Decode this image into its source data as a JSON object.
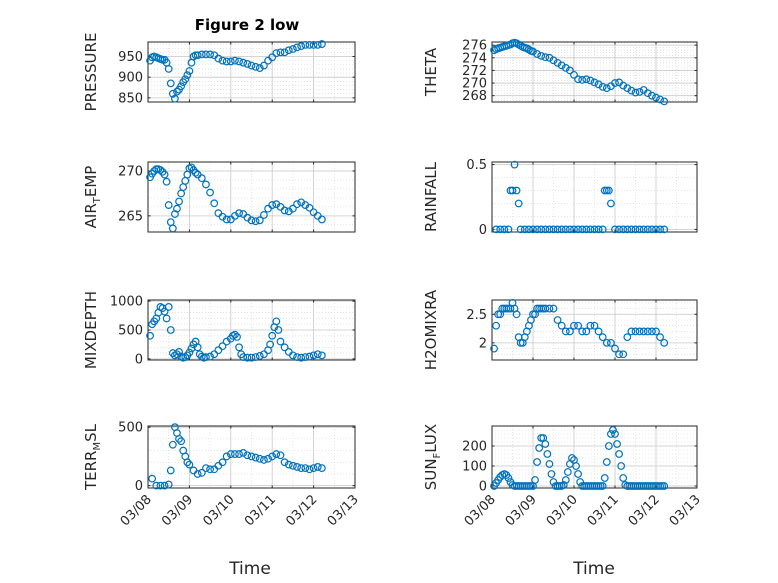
{
  "figure": {
    "title": "Figure 2 low"
  },
  "colors": {
    "marker": "#0072BD",
    "axis": "#262626",
    "grid": "#D4D4D4"
  },
  "chart_data": [
    {
      "type": "scatter",
      "ylabel": "PRESSURE",
      "xlim": [
        "03/08",
        "03/13"
      ],
      "ylim": [
        840,
        985
      ],
      "yticks": [
        850,
        900,
        950
      ],
      "x": [
        0.05,
        0.1,
        0.15,
        0.2,
        0.25,
        0.3,
        0.35,
        0.4,
        0.45,
        0.5,
        0.55,
        0.6,
        0.65,
        0.7,
        0.75,
        0.8,
        0.85,
        0.9,
        0.95,
        1.0,
        1.05,
        1.1,
        1.15,
        1.2,
        1.3,
        1.4,
        1.5,
        1.6,
        1.7,
        1.8,
        1.9,
        2.0,
        2.1,
        2.2,
        2.3,
        2.4,
        2.5,
        2.6,
        2.7,
        2.8,
        2.9,
        3.0,
        3.1,
        3.2,
        3.3,
        3.4,
        3.5,
        3.6,
        3.7,
        3.8,
        3.9,
        4.0,
        4.1,
        4.2
      ],
      "y": [
        940,
        948,
        950,
        948,
        946,
        944,
        942,
        942,
        935,
        920,
        885,
        860,
        848,
        865,
        870,
        878,
        888,
        895,
        905,
        915,
        935,
        950,
        953,
        953,
        955,
        955,
        955,
        953,
        945,
        940,
        938,
        938,
        940,
        938,
        935,
        932,
        928,
        925,
        922,
        928,
        940,
        948,
        958,
        960,
        960,
        965,
        968,
        972,
        975,
        978,
        978,
        978,
        978,
        980
      ]
    },
    {
      "type": "scatter",
      "ylabel": "THETA",
      "xlim": [
        "03/08",
        "03/13"
      ],
      "ylim": [
        267,
        276.5
      ],
      "yticks": [
        268,
        270,
        272,
        274,
        276
      ],
      "x": [
        0.05,
        0.1,
        0.15,
        0.2,
        0.25,
        0.3,
        0.35,
        0.4,
        0.45,
        0.5,
        0.55,
        0.6,
        0.65,
        0.7,
        0.75,
        0.8,
        0.85,
        0.9,
        0.95,
        1.0,
        1.1,
        1.2,
        1.3,
        1.4,
        1.5,
        1.6,
        1.7,
        1.8,
        1.9,
        2.0,
        2.1,
        2.2,
        2.3,
        2.4,
        2.5,
        2.6,
        2.7,
        2.8,
        2.9,
        3.0,
        3.1,
        3.2,
        3.3,
        3.4,
        3.5,
        3.6,
        3.7,
        3.8,
        3.9,
        4.0,
        4.1,
        4.2
      ],
      "y": [
        275.2,
        275.4,
        275.5,
        275.6,
        275.7,
        275.8,
        275.9,
        276.0,
        276.1,
        276.3,
        276.4,
        276.3,
        276.1,
        275.9,
        275.7,
        275.6,
        275.5,
        275.3,
        275.1,
        275.0,
        274.6,
        274.3,
        274.1,
        274.0,
        273.6,
        273.2,
        272.8,
        272.4,
        272.0,
        271.3,
        270.6,
        270.5,
        270.6,
        270.4,
        270.1,
        269.8,
        269.4,
        269.2,
        269.5,
        270.0,
        270.1,
        269.6,
        269.2,
        268.8,
        268.5,
        268.6,
        268.9,
        268.4,
        268.0,
        267.7,
        267.4,
        267.1
      ]
    },
    {
      "type": "scatter",
      "ylabel": "AIR_TEMP",
      "xlim": [
        "03/08",
        "03/13"
      ],
      "ylim": [
        263.2,
        271
      ],
      "yticks": [
        265,
        270
      ],
      "x": [
        0.05,
        0.1,
        0.15,
        0.2,
        0.25,
        0.3,
        0.35,
        0.4,
        0.45,
        0.5,
        0.55,
        0.6,
        0.65,
        0.7,
        0.75,
        0.8,
        0.85,
        0.9,
        0.95,
        1.0,
        1.05,
        1.1,
        1.15,
        1.2,
        1.3,
        1.4,
        1.5,
        1.6,
        1.7,
        1.8,
        1.9,
        2.0,
        2.1,
        2.2,
        2.3,
        2.4,
        2.5,
        2.6,
        2.7,
        2.8,
        2.9,
        3.0,
        3.1,
        3.2,
        3.3,
        3.4,
        3.5,
        3.6,
        3.7,
        3.8,
        3.9,
        4.0,
        4.1,
        4.2
      ],
      "y": [
        269.3,
        269.7,
        270.0,
        270.2,
        270.2,
        270.1,
        269.9,
        269.6,
        268.8,
        266.2,
        264.3,
        263.6,
        265.2,
        265.8,
        266.6,
        267.5,
        268.2,
        268.9,
        269.6,
        270.3,
        270.4,
        270.1,
        269.8,
        269.6,
        269.2,
        268.5,
        267.6,
        266.4,
        265.3,
        264.9,
        264.6,
        264.6,
        265.0,
        265.3,
        265.2,
        264.8,
        264.5,
        264.4,
        264.5,
        265.1,
        265.8,
        266.2,
        266.3,
        266.0,
        265.6,
        265.5,
        265.8,
        266.3,
        266.5,
        266.2,
        265.9,
        265.4,
        265.0,
        264.6
      ]
    },
    {
      "type": "scatter",
      "ylabel": "RAINFALL",
      "xlim": [
        "03/08",
        "03/13"
      ],
      "ylim": [
        -0.02,
        0.52
      ],
      "yticks": [
        0,
        0.5
      ],
      "x": [
        0.1,
        0.2,
        0.3,
        0.4,
        0.45,
        0.5,
        0.55,
        0.6,
        0.65,
        0.7,
        0.8,
        0.9,
        1.0,
        1.1,
        1.2,
        1.3,
        1.4,
        1.5,
        1.6,
        1.7,
        1.8,
        1.9,
        2.0,
        2.1,
        2.2,
        2.3,
        2.4,
        2.5,
        2.6,
        2.7,
        2.75,
        2.8,
        2.85,
        2.9,
        3.0,
        3.1,
        3.2,
        3.3,
        3.4,
        3.5,
        3.6,
        3.7,
        3.8,
        3.9,
        4.0,
        4.1,
        4.2
      ],
      "y": [
        0,
        0,
        0,
        0,
        0.3,
        0.3,
        0.5,
        0.3,
        0.2,
        0,
        0,
        0,
        0,
        0,
        0,
        0,
        0,
        0,
        0,
        0,
        0,
        0,
        0,
        0,
        0,
        0,
        0,
        0,
        0,
        0,
        0.3,
        0.3,
        0.3,
        0.2,
        0,
        0,
        0,
        0,
        0,
        0,
        0,
        0,
        0,
        0,
        0,
        0,
        0
      ]
    },
    {
      "type": "scatter",
      "ylabel": "MIXDEPTH",
      "xlim": [
        "03/08",
        "03/13"
      ],
      "ylim": [
        -20,
        1020
      ],
      "yticks": [
        0,
        500,
        1000
      ],
      "x": [
        0.05,
        0.1,
        0.15,
        0.2,
        0.25,
        0.3,
        0.35,
        0.4,
        0.45,
        0.5,
        0.55,
        0.6,
        0.65,
        0.7,
        0.75,
        0.8,
        0.85,
        0.9,
        0.95,
        1.0,
        1.05,
        1.1,
        1.15,
        1.2,
        1.25,
        1.3,
        1.35,
        1.4,
        1.5,
        1.6,
        1.7,
        1.8,
        1.9,
        2.0,
        2.05,
        2.1,
        2.15,
        2.2,
        2.25,
        2.3,
        2.4,
        2.5,
        2.6,
        2.7,
        2.8,
        2.9,
        2.95,
        3.0,
        3.05,
        3.1,
        3.15,
        3.2,
        3.3,
        3.4,
        3.5,
        3.6,
        3.7,
        3.8,
        3.9,
        4.0,
        4.1,
        4.2
      ],
      "y": [
        400,
        600,
        650,
        700,
        800,
        900,
        880,
        820,
        700,
        900,
        500,
        100,
        60,
        80,
        120,
        40,
        20,
        30,
        60,
        110,
        180,
        250,
        300,
        200,
        80,
        40,
        20,
        30,
        40,
        80,
        150,
        220,
        300,
        350,
        400,
        420,
        380,
        200,
        80,
        30,
        20,
        20,
        30,
        50,
        80,
        150,
        250,
        400,
        550,
        650,
        500,
        300,
        200,
        120,
        60,
        30,
        20,
        30,
        40,
        60,
        80,
        60
      ]
    },
    {
      "type": "scatter",
      "ylabel": "H2OMIXRA",
      "xlim": [
        "03/08",
        "03/13"
      ],
      "ylim": [
        1.7,
        2.75
      ],
      "yticks": [
        2,
        2.5
      ],
      "x": [
        0.05,
        0.1,
        0.15,
        0.2,
        0.25,
        0.3,
        0.35,
        0.4,
        0.45,
        0.5,
        0.55,
        0.6,
        0.65,
        0.7,
        0.75,
        0.8,
        0.85,
        0.9,
        0.95,
        1.0,
        1.05,
        1.1,
        1.15,
        1.2,
        1.25,
        1.3,
        1.4,
        1.5,
        1.6,
        1.7,
        1.8,
        1.9,
        2.0,
        2.1,
        2.2,
        2.3,
        2.4,
        2.5,
        2.6,
        2.7,
        2.8,
        2.9,
        3.0,
        3.1,
        3.2,
        3.3,
        3.4,
        3.5,
        3.6,
        3.7,
        3.8,
        3.9,
        4.0,
        4.1,
        4.2
      ],
      "y": [
        1.9,
        2.3,
        2.5,
        2.5,
        2.6,
        2.6,
        2.6,
        2.6,
        2.6,
        2.7,
        2.6,
        2.5,
        2.1,
        2.0,
        2.0,
        2.1,
        2.2,
        2.3,
        2.4,
        2.5,
        2.5,
        2.6,
        2.6,
        2.6,
        2.6,
        2.6,
        2.6,
        2.6,
        2.4,
        2.3,
        2.2,
        2.2,
        2.3,
        2.3,
        2.2,
        2.2,
        2.3,
        2.3,
        2.2,
        2.1,
        2.0,
        2.0,
        1.9,
        1.8,
        1.8,
        2.1,
        2.2,
        2.2,
        2.2,
        2.2,
        2.2,
        2.2,
        2.2,
        2.1,
        2.0
      ]
    },
    {
      "type": "scatter",
      "ylabel": "TERR_MSL",
      "xlim": [
        "03/08",
        "03/13"
      ],
      "ylim": [
        -20,
        510
      ],
      "yticks": [
        0,
        500
      ],
      "x": [
        0.1,
        0.2,
        0.3,
        0.4,
        0.5,
        0.55,
        0.6,
        0.65,
        0.7,
        0.75,
        0.8,
        0.85,
        0.9,
        0.95,
        1.0,
        1.1,
        1.2,
        1.3,
        1.4,
        1.5,
        1.6,
        1.7,
        1.8,
        1.9,
        2.0,
        2.1,
        2.2,
        2.3,
        2.4,
        2.5,
        2.6,
        2.7,
        2.8,
        2.9,
        3.0,
        3.1,
        3.2,
        3.3,
        3.4,
        3.5,
        3.6,
        3.7,
        3.8,
        3.9,
        4.0,
        4.1,
        4.2
      ],
      "y": [
        60,
        0,
        0,
        0,
        10,
        130,
        350,
        500,
        450,
        400,
        380,
        300,
        250,
        200,
        180,
        130,
        100,
        110,
        150,
        140,
        140,
        170,
        200,
        250,
        270,
        270,
        270,
        280,
        260,
        250,
        240,
        230,
        220,
        230,
        250,
        270,
        260,
        200,
        180,
        170,
        160,
        150,
        150,
        140,
        150,
        160,
        150
      ]
    },
    {
      "type": "scatter",
      "ylabel": "SUN_FLUX",
      "xlim": [
        "03/08",
        "03/13"
      ],
      "ylim": [
        -10,
        300
      ],
      "yticks": [
        0,
        100,
        200
      ],
      "x": [
        0.05,
        0.1,
        0.15,
        0.2,
        0.25,
        0.3,
        0.35,
        0.4,
        0.45,
        0.5,
        0.55,
        0.6,
        0.65,
        0.7,
        0.75,
        0.8,
        0.85,
        0.9,
        0.95,
        1.0,
        1.05,
        1.1,
        1.15,
        1.2,
        1.25,
        1.3,
        1.35,
        1.4,
        1.45,
        1.5,
        1.55,
        1.6,
        1.65,
        1.7,
        1.75,
        1.8,
        1.85,
        1.9,
        1.95,
        2.0,
        2.05,
        2.1,
        2.15,
        2.2,
        2.25,
        2.3,
        2.35,
        2.4,
        2.45,
        2.5,
        2.55,
        2.6,
        2.65,
        2.7,
        2.75,
        2.8,
        2.85,
        2.9,
        2.95,
        3.0,
        3.05,
        3.1,
        3.15,
        3.2,
        3.25,
        3.3,
        3.35,
        3.4,
        3.45,
        3.5,
        3.55,
        3.6,
        3.65,
        3.7,
        3.75,
        3.8,
        3.85,
        3.9,
        3.95,
        4.0,
        4.05,
        4.1,
        4.15,
        4.2
      ],
      "y": [
        0,
        15,
        30,
        45,
        55,
        60,
        55,
        40,
        20,
        5,
        0,
        0,
        0,
        0,
        0,
        0,
        0,
        0,
        0,
        0,
        30,
        120,
        190,
        240,
        240,
        210,
        160,
        110,
        60,
        20,
        0,
        0,
        0,
        0,
        5,
        30,
        70,
        110,
        140,
        130,
        100,
        60,
        20,
        0,
        0,
        0,
        0,
        0,
        0,
        0,
        0,
        0,
        0,
        0,
        40,
        120,
        200,
        260,
        280,
        260,
        210,
        160,
        100,
        40,
        5,
        0,
        0,
        0,
        0,
        0,
        0,
        0,
        0,
        0,
        0,
        0,
        0,
        0,
        0,
        0,
        0,
        0,
        0,
        0
      ]
    }
  ],
  "xaxis": {
    "tick_labels": [
      "03/08",
      "03/09",
      "03/10",
      "03/11",
      "03/12",
      "03/13"
    ],
    "label": "Time"
  }
}
